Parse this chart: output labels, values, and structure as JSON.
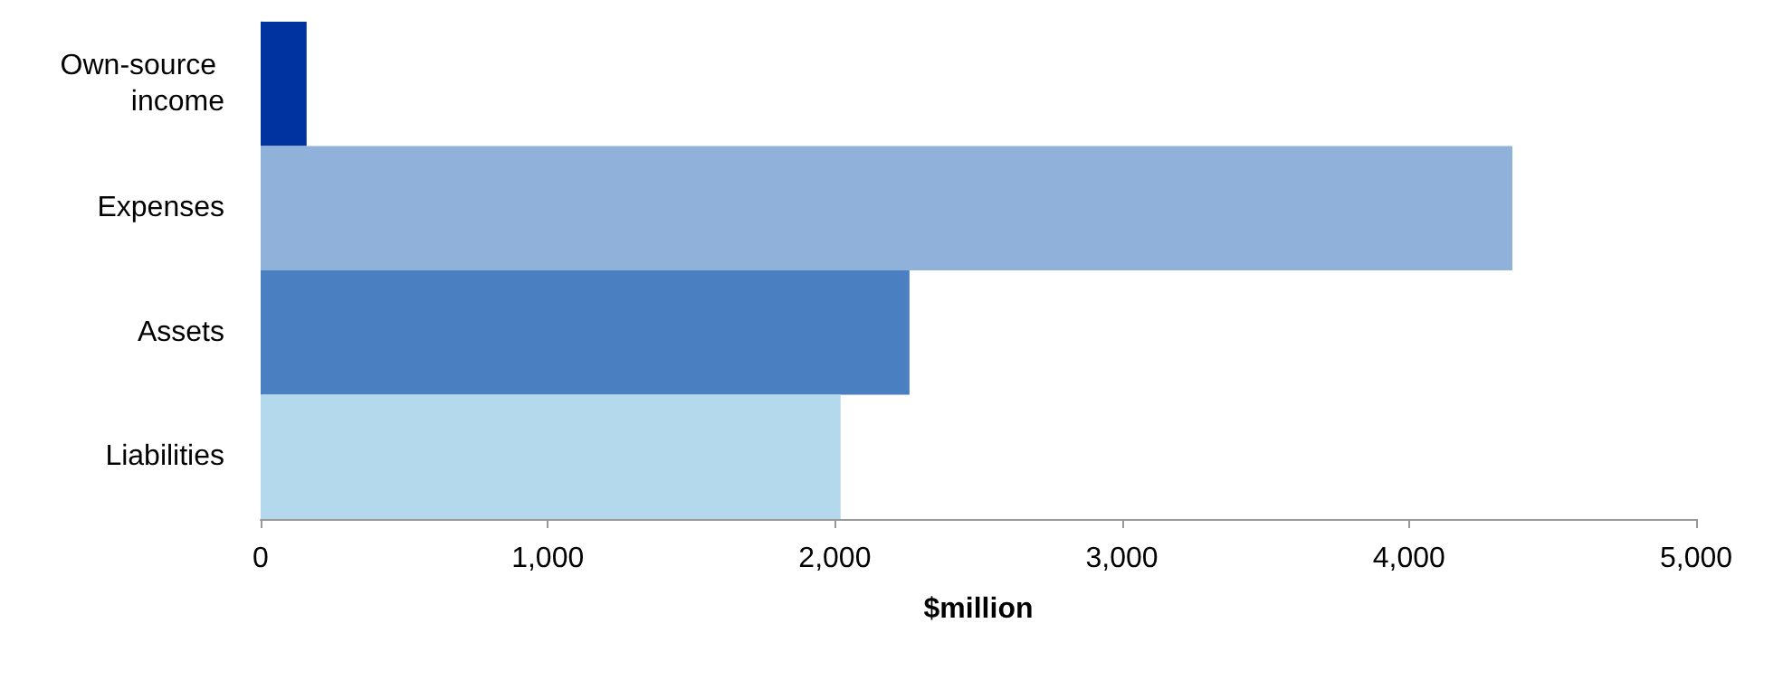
{
  "chart_data": {
    "type": "bar",
    "orientation": "horizontal",
    "categories": [
      "Own-source income",
      "Expenses",
      "Assets",
      "Liabilities"
    ],
    "values": [
      160,
      4360,
      2260,
      2020
    ],
    "colors": [
      "#0033a0",
      "#8fb1da",
      "#4a7fc1",
      "#b4d8ec"
    ],
    "xlabel": "$million",
    "xlim": [
      0,
      5000
    ],
    "xticks": [
      0,
      {
        "value": 1000,
        "label": "1,000"
      },
      {
        "value": 2000,
        "label": "2,000"
      },
      {
        "value": 3000,
        "label": "3,000"
      },
      {
        "value": 4000,
        "label": "4,000"
      },
      {
        "value": 5000,
        "label": "5,000"
      }
    ],
    "grid": false
  }
}
